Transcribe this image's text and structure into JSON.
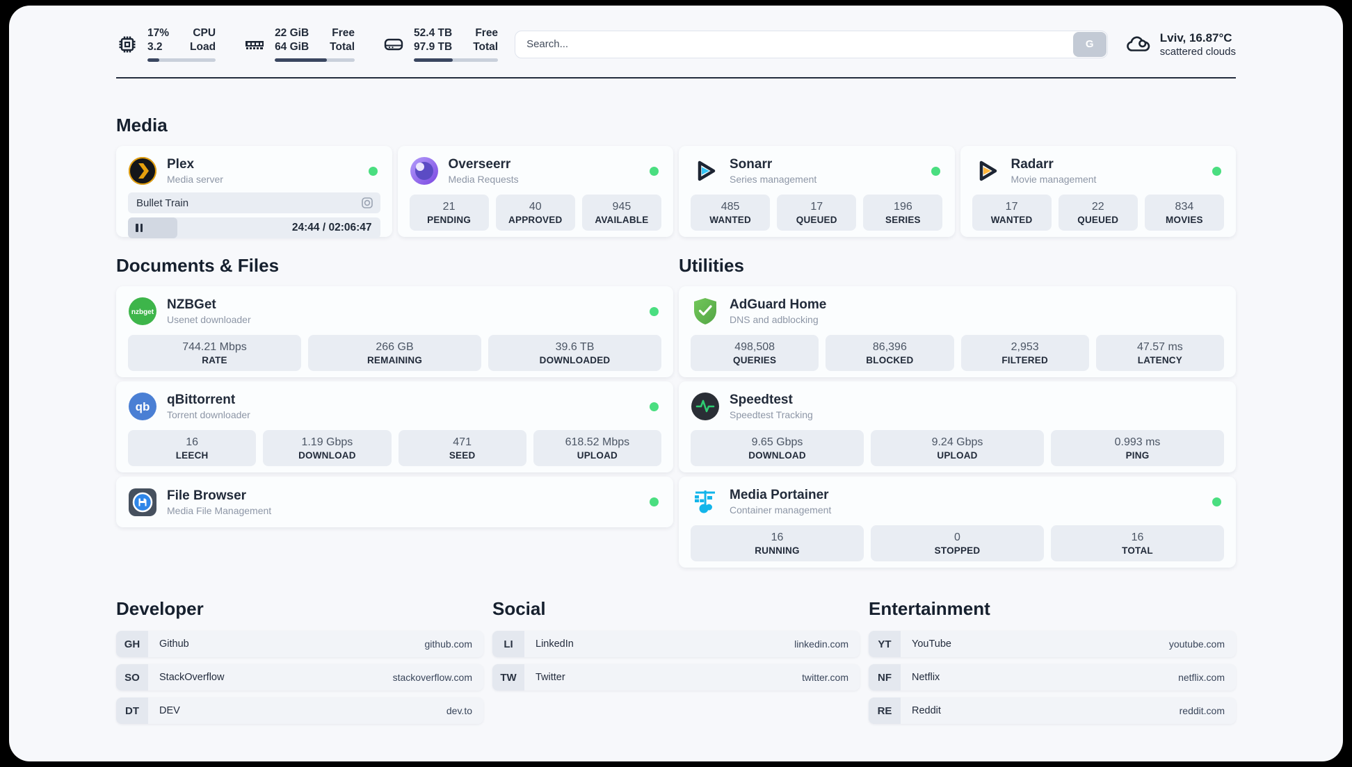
{
  "header": {
    "system_widgets": [
      {
        "icon": "cpu-icon",
        "values": [
          "17%",
          "3.2"
        ],
        "labels": [
          "CPU",
          "Load"
        ],
        "progress_pct": 17
      },
      {
        "icon": "ram-icon",
        "values": [
          "22 GiB",
          "64 GiB"
        ],
        "labels": [
          "Free",
          "Total"
        ],
        "progress_pct": 65
      },
      {
        "icon": "disk-icon",
        "values": [
          "52.4 TB",
          "97.9 TB"
        ],
        "labels": [
          "Free",
          "Total"
        ],
        "progress_pct": 46
      }
    ],
    "search": {
      "placeholder": "Search...",
      "button_label": "G"
    },
    "weather": {
      "summary": "Lviv, 16.87°C",
      "condition": "scattered clouds"
    }
  },
  "colors": {
    "status_online": "#4ade80",
    "accent_navy": "#232c3d"
  },
  "media": {
    "title": "Media",
    "plex": {
      "name": "Plex",
      "subtitle": "Media server",
      "status": "online",
      "now_playing": {
        "title": "Bullet Train",
        "time_display": "24:44 / 02:06:47",
        "progress_pct": 19.5
      }
    },
    "overseerr": {
      "name": "Overseerr",
      "subtitle": "Media Requests",
      "status": "online",
      "stats": [
        {
          "value": "21",
          "label": "PENDING"
        },
        {
          "value": "40",
          "label": "APPROVED"
        },
        {
          "value": "945",
          "label": "AVAILABLE"
        }
      ]
    },
    "sonarr": {
      "name": "Sonarr",
      "subtitle": "Series management",
      "status": "online",
      "stats": [
        {
          "value": "485",
          "label": "WANTED"
        },
        {
          "value": "17",
          "label": "QUEUED"
        },
        {
          "value": "196",
          "label": "SERIES"
        }
      ]
    },
    "radarr": {
      "name": "Radarr",
      "subtitle": "Movie management",
      "status": "online",
      "stats": [
        {
          "value": "17",
          "label": "WANTED"
        },
        {
          "value": "22",
          "label": "QUEUED"
        },
        {
          "value": "834",
          "label": "MOVIES"
        }
      ]
    }
  },
  "documents": {
    "title": "Documents & Files",
    "nzbget": {
      "name": "NZBGet",
      "subtitle": "Usenet downloader",
      "status": "online",
      "stats": [
        {
          "value": "744.21 Mbps",
          "label": "RATE"
        },
        {
          "value": "266 GB",
          "label": "REMAINING"
        },
        {
          "value": "39.6 TB",
          "label": "DOWNLOADED"
        }
      ]
    },
    "qbittorrent": {
      "name": "qBittorrent",
      "subtitle": "Torrent downloader",
      "status": "online",
      "stats": [
        {
          "value": "16",
          "label": "LEECH"
        },
        {
          "value": "1.19 Gbps",
          "label": "DOWNLOAD"
        },
        {
          "value": "471",
          "label": "SEED"
        },
        {
          "value": "618.52 Mbps",
          "label": "UPLOAD"
        }
      ]
    },
    "filebrowser": {
      "name": "File Browser",
      "subtitle": "Media File Management",
      "status": "online"
    }
  },
  "utilities": {
    "title": "Utilities",
    "adguard": {
      "name": "AdGuard Home",
      "subtitle": "DNS and adblocking",
      "stats": [
        {
          "value": "498,508",
          "label": "QUERIES"
        },
        {
          "value": "86,396",
          "label": "BLOCKED"
        },
        {
          "value": "2,953",
          "label": "FILTERED"
        },
        {
          "value": "47.57 ms",
          "label": "LATENCY"
        }
      ]
    },
    "speedtest": {
      "name": "Speedtest",
      "subtitle": "Speedtest Tracking",
      "stats": [
        {
          "value": "9.65 Gbps",
          "label": "DOWNLOAD"
        },
        {
          "value": "9.24 Gbps",
          "label": "UPLOAD"
        },
        {
          "value": "0.993 ms",
          "label": "PING"
        }
      ]
    },
    "portainer": {
      "name": "Media Portainer",
      "subtitle": "Container management",
      "status": "online",
      "stats": [
        {
          "value": "16",
          "label": "RUNNING"
        },
        {
          "value": "0",
          "label": "STOPPED"
        },
        {
          "value": "16",
          "label": "TOTAL"
        }
      ]
    }
  },
  "link_groups": [
    {
      "title": "Developer",
      "links": [
        {
          "badge": "GH",
          "name": "Github",
          "domain": "github.com"
        },
        {
          "badge": "SO",
          "name": "StackOverflow",
          "domain": "stackoverflow.com"
        },
        {
          "badge": "DT",
          "name": "DEV",
          "domain": "dev.to"
        }
      ]
    },
    {
      "title": "Social",
      "links": [
        {
          "badge": "LI",
          "name": "LinkedIn",
          "domain": "linkedin.com"
        },
        {
          "badge": "TW",
          "name": "Twitter",
          "domain": "twitter.com"
        }
      ]
    },
    {
      "title": "Entertainment",
      "links": [
        {
          "badge": "YT",
          "name": "YouTube",
          "domain": "youtube.com"
        },
        {
          "badge": "NF",
          "name": "Netflix",
          "domain": "netflix.com"
        },
        {
          "badge": "RE",
          "name": "Reddit",
          "domain": "reddit.com"
        }
      ]
    }
  ]
}
